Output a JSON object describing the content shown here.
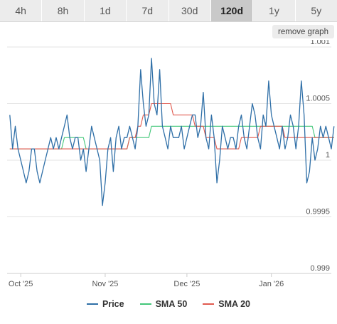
{
  "tabs": [
    {
      "label": "4h"
    },
    {
      "label": "8h"
    },
    {
      "label": "1d"
    },
    {
      "label": "7d"
    },
    {
      "label": "30d"
    },
    {
      "label": "120d",
      "active": true
    },
    {
      "label": "1y"
    },
    {
      "label": "5y"
    }
  ],
  "remove_graph_label": "remove graph",
  "colors": {
    "price": "#2f6fa7",
    "sma50": "#43c77a",
    "sma20": "#e05a4f",
    "grid": "#e3e3e3"
  },
  "chart_data": {
    "type": "line",
    "title": "",
    "xlabel": "",
    "ylabel": "",
    "ylim": [
      0.999,
      1.001
    ],
    "yticks": [
      0.999,
      0.9995,
      1,
      1.0005,
      1.001
    ],
    "ytick_labels": [
      "0.999",
      "0.9995",
      "1",
      "1.0005",
      "1.001"
    ],
    "xticks": [
      "Oct '25",
      "Nov '25",
      "Dec '25",
      "Jan '26"
    ],
    "xtick_positions": [
      4,
      35,
      65,
      96
    ],
    "xlim": [
      -1,
      118
    ],
    "grid": true,
    "legend": "bottom",
    "series": [
      {
        "name": "Price",
        "values": [
          1.0004,
          1.0001,
          1.0003,
          1.0001,
          1,
          0.9999,
          0.9998,
          0.9999,
          1.0001,
          1.0001,
          0.9999,
          0.9998,
          0.9999,
          1,
          1.0001,
          1.0002,
          1.0001,
          1.0002,
          1.0001,
          1.0002,
          1.0003,
          1.0004,
          1.0002,
          1.0001,
          1.0002,
          1.0002,
          1,
          1.0001,
          0.9999,
          1.0001,
          1.0003,
          1.0002,
          1.0001,
          1,
          0.9996,
          0.9998,
          1.0001,
          1.0002,
          0.9999,
          1.0002,
          1.0003,
          1.0001,
          1.0002,
          1.0002,
          1.0003,
          1.0002,
          1.0001,
          1.0003,
          1.0008,
          1.0005,
          1.0003,
          1.0004,
          1.0009,
          1.0005,
          1.0004,
          1.0008,
          1.0003,
          1.0002,
          1.0001,
          1.0003,
          1.0002,
          1.0002,
          1.0002,
          1.0003,
          1.0001,
          1.0002,
          1.0003,
          1.0004,
          1.0004,
          1.0002,
          1.0003,
          1.0006,
          1.0002,
          1.0001,
          1.0004,
          1.0002,
          0.9998,
          1,
          1.0003,
          1.0002,
          1.0001,
          1.0002,
          1.0002,
          1.0001,
          1.0003,
          1.0004,
          1.0002,
          1.0001,
          1.0003,
          1.0005,
          1.0004,
          1.0002,
          1.0001,
          1.0004,
          1.0003,
          1.0007,
          1.0004,
          1.0003,
          1.0002,
          1.0001,
          1.0003,
          1.0001,
          1.0002,
          1.0004,
          1.0003,
          1.0001,
          1.0003,
          1.0007,
          1.0004,
          0.9998,
          0.9999,
          1.0002,
          1,
          1.0001,
          1.0003,
          1.0002,
          1.0003,
          1.0002,
          1.0001,
          1.0003
        ]
      },
      {
        "name": "SMA 50",
        "values": [
          1.0001,
          1.0001,
          1.0001,
          1.0001,
          1.0001,
          1.0001,
          1.0001,
          1.0001,
          1.0001,
          1.0001,
          1.0001,
          1.0001,
          1.0001,
          1.0001,
          1.0001,
          1.0001,
          1.0001,
          1.0001,
          1.0001,
          1.0001,
          1.0002,
          1.0002,
          1.0002,
          1.0002,
          1.0002,
          1.0002,
          1.0002,
          1.0002,
          1.0001,
          1.0001,
          1.0001,
          1.0001,
          1.0001,
          1.0001,
          1.0001,
          1.0001,
          1.0001,
          1.0001,
          1.0001,
          1.0001,
          1.0001,
          1.0001,
          1.0001,
          1.0001,
          1.0002,
          1.0002,
          1.0002,
          1.0002,
          1.0002,
          1.0002,
          1.0002,
          1.0002,
          1.0003,
          1.0003,
          1.0003,
          1.0003,
          1.0003,
          1.0003,
          1.0003,
          1.0003,
          1.0003,
          1.0003,
          1.0003,
          1.0003,
          1.0003,
          1.0003,
          1.0003,
          1.0003,
          1.0003,
          1.0003,
          1.0003,
          1.0003,
          1.0003,
          1.0003,
          1.0003,
          1.0003,
          1.0003,
          1.0003,
          1.0003,
          1.0003,
          1.0003,
          1.0003,
          1.0003,
          1.0003,
          1.0003,
          1.0003,
          1.0003,
          1.0003,
          1.0003,
          1.0003,
          1.0003,
          1.0003,
          1.0003,
          1.0003,
          1.0003,
          1.0003,
          1.0003,
          1.0003,
          1.0003,
          1.0003,
          1.0003,
          1.0003,
          1.0003,
          1.0003,
          1.0003,
          1.0003,
          1.0003,
          1.0003,
          1.0003,
          1.0003,
          1.0003,
          1.0003,
          1.0002,
          1.0002,
          1.0002,
          1.0002,
          1.0002,
          1.0002,
          1.0002,
          1.0002
        ]
      },
      {
        "name": "SMA 20",
        "values": [
          1.0001,
          1.0001,
          1.0001,
          1.0001,
          1.0001,
          1.0001,
          1.0001,
          1.0001,
          1.0001,
          1.0001,
          1.0001,
          1.0001,
          1.0001,
          1.0001,
          1.0001,
          1.0001,
          1.0001,
          1.0001,
          1.0001,
          1.0001,
          1.0001,
          1.0001,
          1.0001,
          1.0001,
          1.0001,
          1.0001,
          1.0001,
          1.0001,
          1.0001,
          1.0001,
          1.0001,
          1.0001,
          1.0001,
          1.0001,
          1.0001,
          1.0001,
          1.0001,
          1.0001,
          1.0001,
          1.0001,
          1.0001,
          1.0001,
          1.0001,
          1.0001,
          1.0002,
          1.0002,
          1.0002,
          1.0003,
          1.0003,
          1.0004,
          1.0004,
          1.0004,
          1.0005,
          1.0005,
          1.0005,
          1.0005,
          1.0005,
          1.0005,
          1.0005,
          1.0005,
          1.0004,
          1.0004,
          1.0004,
          1.0004,
          1.0004,
          1.0004,
          1.0004,
          1.0004,
          1.0003,
          1.0003,
          1.0003,
          1.0003,
          1.0002,
          1.0002,
          1.0002,
          1.0002,
          1.0001,
          1.0001,
          1.0001,
          1.0001,
          1.0001,
          1.0001,
          1.0001,
          1.0001,
          1.0001,
          1.0002,
          1.0002,
          1.0002,
          1.0002,
          1.0002,
          1.0002,
          1.0002,
          1.0003,
          1.0003,
          1.0003,
          1.0003,
          1.0003,
          1.0003,
          1.0003,
          1.0003,
          1.0003,
          1.0002,
          1.0002,
          1.0002,
          1.0002,
          1.0002,
          1.0002,
          1.0002,
          1.0002,
          1.0002,
          1.0002,
          1.0002,
          1.0002,
          1.0002,
          1.0002,
          1.0002,
          1.0002,
          1.0002,
          1.0002,
          1.0002
        ]
      }
    ]
  }
}
